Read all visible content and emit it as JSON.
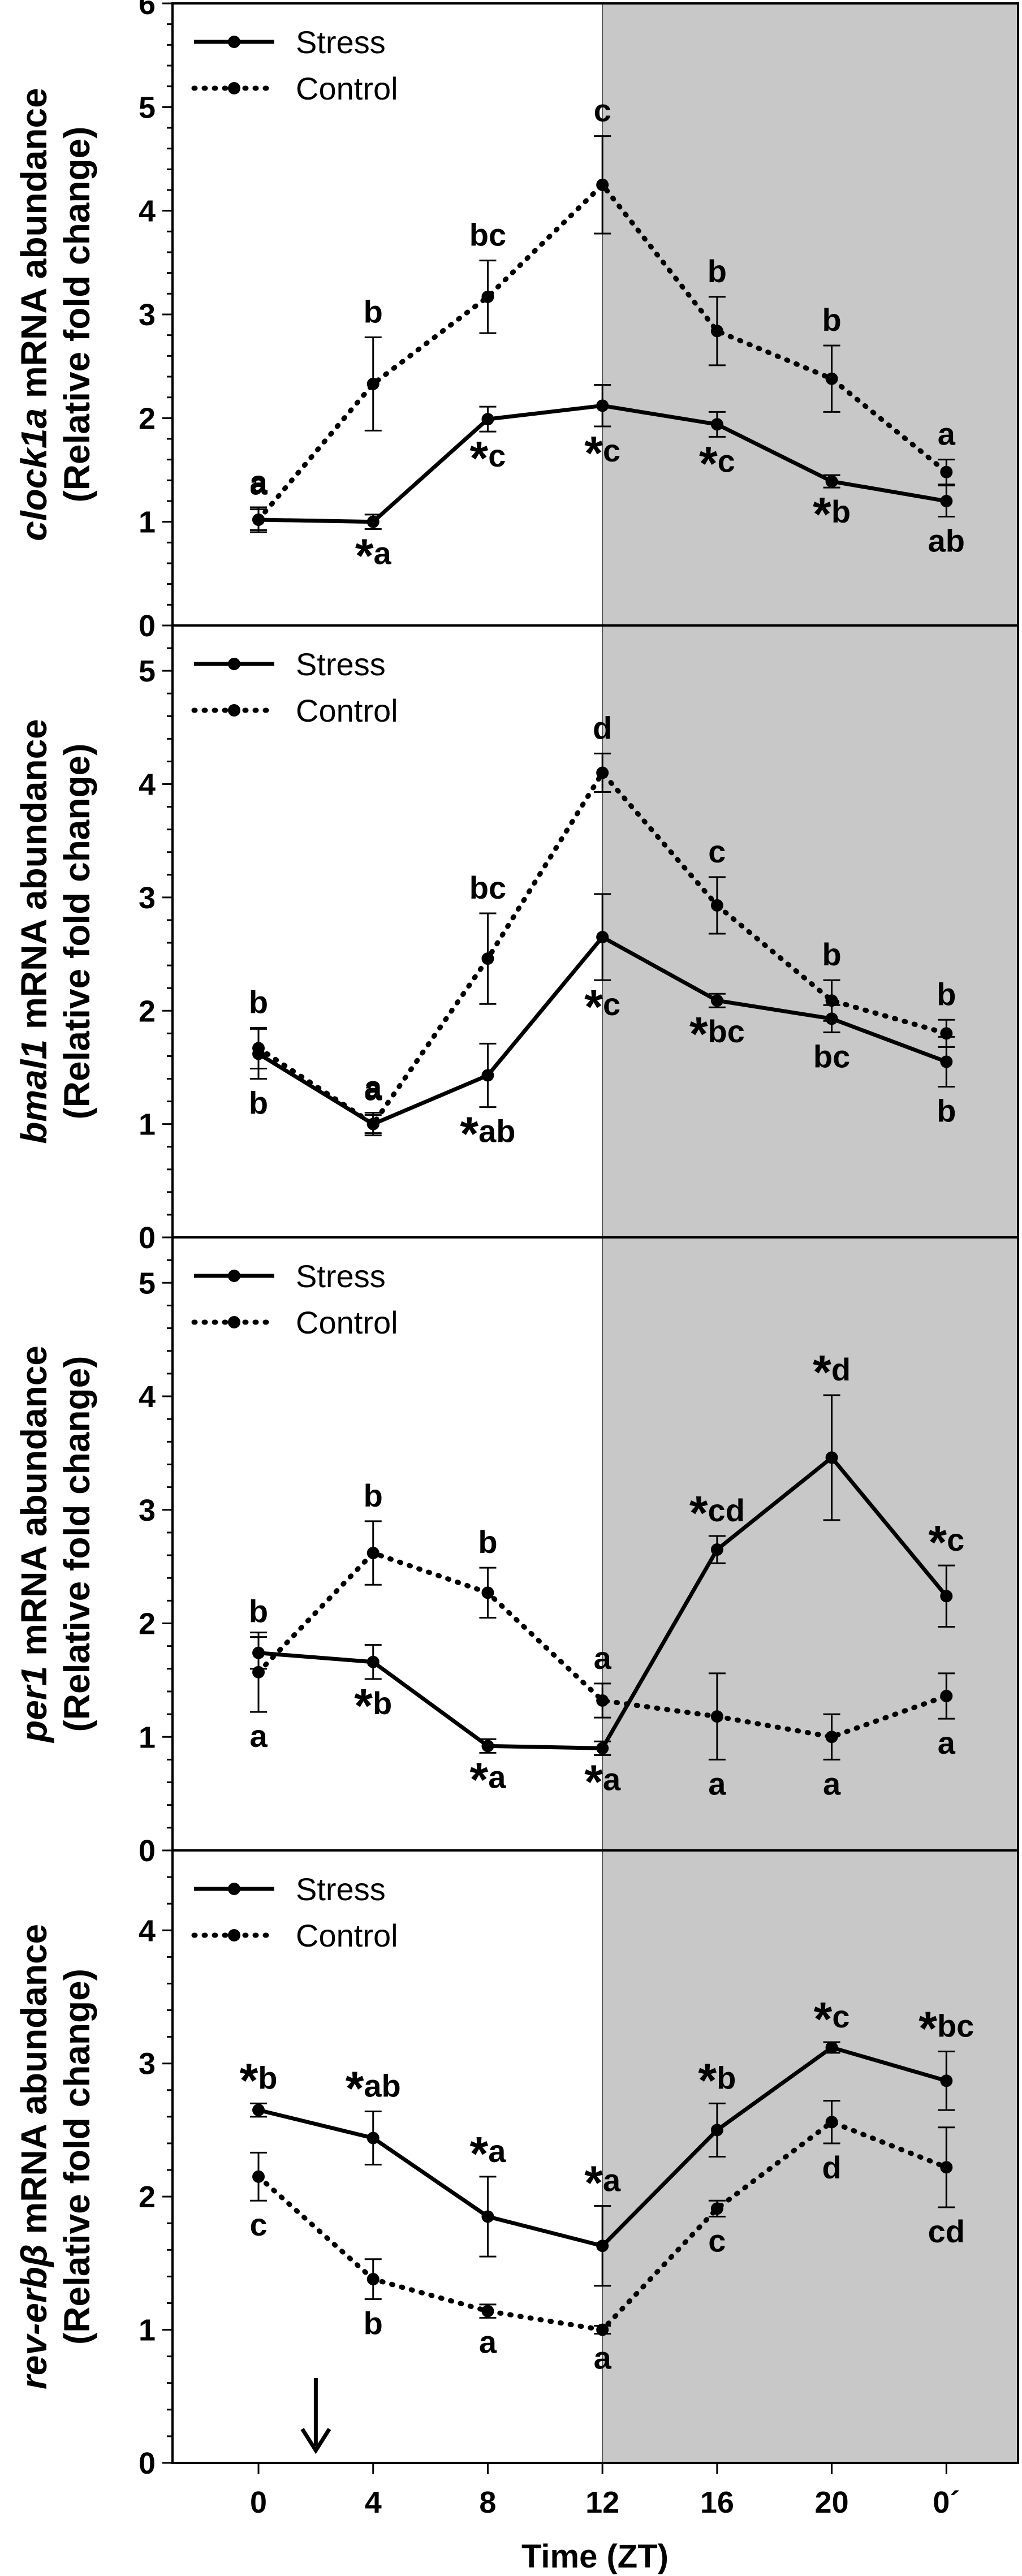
{
  "chart_data": [
    {
      "type": "line",
      "gene": "clock1a",
      "ylabel_suffix": " mRNA abundance",
      "ylabel_line2": "(Relative fold change)",
      "ylim": [
        0,
        6
      ],
      "yticks": [
        "0",
        "1",
        "2",
        "3",
        "4",
        "5",
        "6"
      ],
      "series": [
        {
          "name": "Stress",
          "values": [
            1.02,
            1.0,
            1.99,
            2.12,
            1.94,
            1.39,
            1.2
          ],
          "errors": [
            0.12,
            0.07,
            0.12,
            0.2,
            0.12,
            0.06,
            0.15
          ]
        },
        {
          "name": "Control",
          "values": [
            1.02,
            2.33,
            3.17,
            4.25,
            2.84,
            2.38,
            1.48
          ],
          "errors": [
            0.1,
            0.45,
            0.35,
            0.47,
            0.33,
            0.32,
            0.12
          ]
        }
      ],
      "annotations": [
        {
          "series": "Control",
          "x_index": 0,
          "star": "",
          "text": "a"
        },
        {
          "series": "Control",
          "x_index": 1,
          "star": "",
          "text": "b"
        },
        {
          "series": "Control",
          "x_index": 2,
          "star": "",
          "text": "bc"
        },
        {
          "series": "Control",
          "x_index": 3,
          "star": "",
          "text": "c"
        },
        {
          "series": "Control",
          "x_index": 4,
          "star": "",
          "text": "b"
        },
        {
          "series": "Control",
          "x_index": 5,
          "star": "",
          "text": "b"
        },
        {
          "series": "Control",
          "x_index": 6,
          "star": "",
          "text": "a"
        },
        {
          "series": "Stress",
          "x_index": 0,
          "star": "",
          "text": "a"
        },
        {
          "series": "Stress",
          "x_index": 1,
          "star": "*",
          "text": "a"
        },
        {
          "series": "Stress",
          "x_index": 2,
          "star": "*",
          "text": "c"
        },
        {
          "series": "Stress",
          "x_index": 3,
          "star": "*",
          "text": "c"
        },
        {
          "series": "Stress",
          "x_index": 4,
          "star": "*",
          "text": "c"
        },
        {
          "series": "Stress",
          "x_index": 5,
          "star": "*",
          "text": "b"
        },
        {
          "series": "Stress",
          "x_index": 6,
          "star": "",
          "text": "ab"
        }
      ]
    },
    {
      "type": "line",
      "gene": "bmal1",
      "ylabel_suffix": " mRNA abundance",
      "ylabel_line2": "(Relative fold change)",
      "ylim": [
        0,
        5.4
      ],
      "yticks": [
        "0",
        "1",
        "2",
        "3",
        "4",
        "5"
      ],
      "series": [
        {
          "name": "Stress",
          "values": [
            1.62,
            1.0,
            1.43,
            2.65,
            2.09,
            1.93,
            1.55
          ],
          "errors": [
            0.22,
            0.08,
            0.28,
            0.38,
            0.06,
            0.12,
            0.22
          ]
        },
        {
          "name": "Control",
          "values": [
            1.67,
            1.0,
            2.46,
            4.1,
            2.93,
            2.09,
            1.8
          ],
          "errors": [
            0.18,
            0.1,
            0.4,
            0.17,
            0.25,
            0.18,
            0.12
          ]
        }
      ],
      "annotations": [
        {
          "series": "Control",
          "x_index": 0,
          "star": "",
          "text": "b"
        },
        {
          "series": "Control",
          "x_index": 1,
          "star": "",
          "text": "a"
        },
        {
          "series": "Control",
          "x_index": 2,
          "star": "",
          "text": "bc"
        },
        {
          "series": "Control",
          "x_index": 3,
          "star": "",
          "text": "d"
        },
        {
          "series": "Control",
          "x_index": 4,
          "star": "",
          "text": "c"
        },
        {
          "series": "Control",
          "x_index": 5,
          "star": "",
          "text": "b"
        },
        {
          "series": "Control",
          "x_index": 6,
          "star": "",
          "text": "b"
        },
        {
          "series": "Stress",
          "x_index": 0,
          "star": "",
          "text": "b"
        },
        {
          "series": "Stress",
          "x_index": 1,
          "star": "",
          "text": "a"
        },
        {
          "series": "Stress",
          "x_index": 2,
          "star": "*",
          "text": "ab"
        },
        {
          "series": "Stress",
          "x_index": 3,
          "star": "*",
          "text": "c"
        },
        {
          "series": "Stress",
          "x_index": 4,
          "star": "*",
          "text": "bc"
        },
        {
          "series": "Stress",
          "x_index": 5,
          "star": "",
          "text": "bc"
        },
        {
          "series": "Stress",
          "x_index": 6,
          "star": "",
          "text": "b"
        }
      ]
    },
    {
      "type": "line",
      "gene": "per1",
      "ylabel_suffix": " mRNA abundance",
      "ylabel_line2": "(Relative fold change)",
      "ylim": [
        0,
        5.4
      ],
      "yticks": [
        "0",
        "1",
        "2",
        "3",
        "4",
        "5"
      ],
      "series": [
        {
          "name": "Stress",
          "values": [
            1.74,
            1.66,
            0.92,
            0.9,
            2.65,
            3.46,
            2.24
          ],
          "errors": [
            0.14,
            0.15,
            0.06,
            0.06,
            0.12,
            0.55,
            0.27
          ]
        },
        {
          "name": "Control",
          "values": [
            1.57,
            2.62,
            2.27,
            1.32,
            1.18,
            1.0,
            1.36
          ],
          "errors": [
            0.35,
            0.28,
            0.22,
            0.15,
            0.38,
            0.2,
            0.2
          ]
        }
      ],
      "annotations": [
        {
          "series": "Control",
          "x_index": 0,
          "star": "",
          "text": "a"
        },
        {
          "series": "Control",
          "x_index": 1,
          "star": "",
          "text": "b"
        },
        {
          "series": "Control",
          "x_index": 2,
          "star": "",
          "text": "b"
        },
        {
          "series": "Control",
          "x_index": 3,
          "star": "",
          "text": "a"
        },
        {
          "series": "Control",
          "x_index": 4,
          "star": "",
          "text": "a"
        },
        {
          "series": "Control",
          "x_index": 5,
          "star": "",
          "text": "a"
        },
        {
          "series": "Control",
          "x_index": 6,
          "star": "",
          "text": "a"
        },
        {
          "series": "Stress",
          "x_index": 0,
          "star": "",
          "text": "b"
        },
        {
          "series": "Stress",
          "x_index": 1,
          "star": "*",
          "text": "b"
        },
        {
          "series": "Stress",
          "x_index": 2,
          "star": "*",
          "text": "a"
        },
        {
          "series": "Stress",
          "x_index": 3,
          "star": "*",
          "text": "a"
        },
        {
          "series": "Stress",
          "x_index": 4,
          "star": "*",
          "text": "cd"
        },
        {
          "series": "Stress",
          "x_index": 5,
          "star": "*",
          "text": "d"
        },
        {
          "series": "Stress",
          "x_index": 6,
          "star": "*",
          "text": "c"
        }
      ]
    },
    {
      "type": "line",
      "gene": "rev-erbβ",
      "ylabel_suffix": " mRNA abundance",
      "ylabel_line2": "(Relative fold change)",
      "ylim": [
        0,
        4.6
      ],
      "yticks": [
        "0",
        "1",
        "2",
        "3",
        "4"
      ],
      "series": [
        {
          "name": "Stress",
          "values": [
            2.65,
            2.44,
            1.85,
            1.63,
            2.5,
            3.12,
            2.87
          ],
          "errors": [
            0.05,
            0.2,
            0.3,
            0.3,
            0.2,
            0.04,
            0.22
          ]
        },
        {
          "name": "Control",
          "values": [
            2.15,
            1.38,
            1.14,
            1.0,
            1.91,
            2.56,
            2.22
          ],
          "errors": [
            0.18,
            0.15,
            0.05,
            0.03,
            0.06,
            0.16,
            0.3
          ]
        }
      ],
      "annotations": [
        {
          "series": "Control",
          "x_index": 0,
          "star": "",
          "text": "c"
        },
        {
          "series": "Control",
          "x_index": 1,
          "star": "",
          "text": "b"
        },
        {
          "series": "Control",
          "x_index": 2,
          "star": "",
          "text": "a"
        },
        {
          "series": "Control",
          "x_index": 3,
          "star": "",
          "text": "a"
        },
        {
          "series": "Control",
          "x_index": 4,
          "star": "",
          "text": "c"
        },
        {
          "series": "Control",
          "x_index": 5,
          "star": "",
          "text": "d"
        },
        {
          "series": "Control",
          "x_index": 6,
          "star": "",
          "text": "cd"
        },
        {
          "series": "Stress",
          "x_index": 0,
          "star": "*",
          "text": "b"
        },
        {
          "series": "Stress",
          "x_index": 1,
          "star": "*",
          "text": "ab"
        },
        {
          "series": "Stress",
          "x_index": 2,
          "star": "*",
          "text": "a"
        },
        {
          "series": "Stress",
          "x_index": 3,
          "star": "*",
          "text": "a"
        },
        {
          "series": "Stress",
          "x_index": 4,
          "star": "*",
          "text": "b"
        },
        {
          "series": "Stress",
          "x_index": 5,
          "star": "*",
          "text": "c"
        },
        {
          "series": "Stress",
          "x_index": 6,
          "star": "*",
          "text": "bc"
        }
      ]
    }
  ],
  "shared": {
    "x_values": [
      0,
      4,
      8,
      12,
      16,
      20,
      24
    ],
    "x_tick_labels": [
      "0",
      "4",
      "8",
      "12",
      "16",
      "20",
      "0´"
    ],
    "xlabel": "Time (ZT)",
    "legend": {
      "stress": "Stress",
      "control": "Control",
      "placement": "top-left"
    },
    "dark_phase_start_zt": 12,
    "stress_event_zt": 2,
    "colors": {
      "line": "#000000",
      "dark_phase": "#c8c8c8",
      "background": "#ffffff"
    }
  }
}
